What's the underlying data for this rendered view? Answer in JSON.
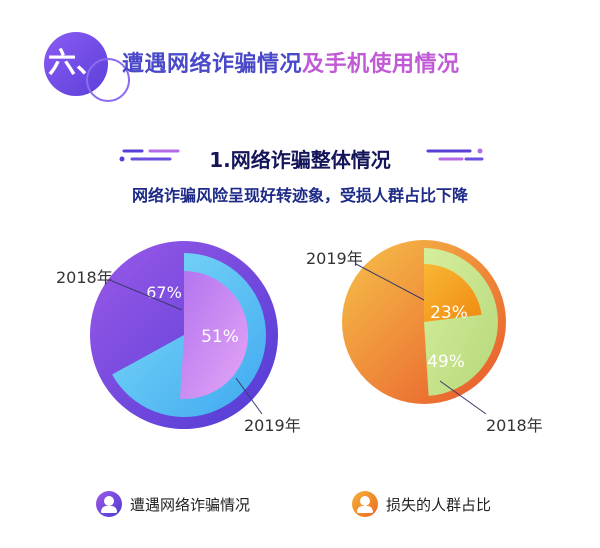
{
  "section": {
    "number": "六、",
    "title_part1": "遭遇网络诈骗情况",
    "title_part2": "及手机使用情况"
  },
  "subsection_title": "1.网络诈骗整体情况",
  "headline": "网络诈骗风险呈现好转迹象，受损人群占比下降",
  "colors": {
    "fraud_outer": "#7a4fe3",
    "fraud_2018": "#5fd0f5",
    "fraud_2019": "#c77ff2",
    "loss_outer": "#f2a03a",
    "loss_2018": "#c6e38a",
    "loss_2019": "#f6a21c"
  },
  "chart_data": [
    {
      "type": "pie",
      "name": "遭遇网络诈骗情况",
      "series": [
        {
          "name": "2018年",
          "value": 67,
          "label": "67%"
        },
        {
          "name": "2019年",
          "value": 51,
          "label": "51%"
        }
      ]
    },
    {
      "type": "pie",
      "name": "损失的人群占比",
      "series": [
        {
          "name": "2018年",
          "value": 49,
          "label": "49%"
        },
        {
          "name": "2019年",
          "value": 23,
          "label": "23%"
        }
      ]
    }
  ],
  "legend": [
    {
      "label": "遭遇网络诈骗情况",
      "icon": "user-icon"
    },
    {
      "label": "损失的人群占比",
      "icon": "person-icon"
    }
  ]
}
